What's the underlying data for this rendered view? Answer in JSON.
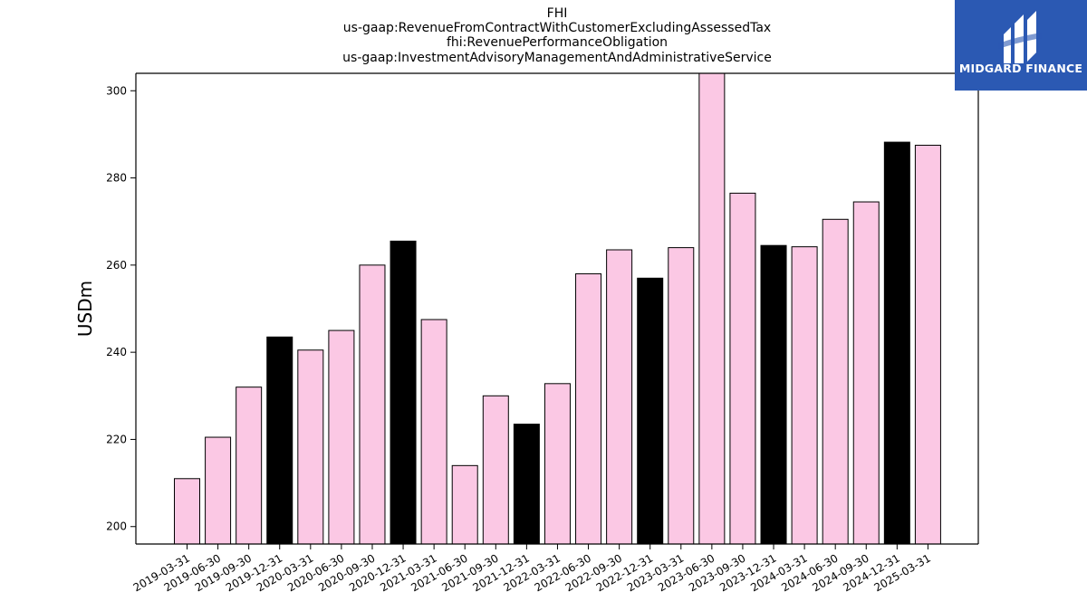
{
  "chart_data": {
    "type": "bar",
    "title_lines": [
      "FHI",
      "us-gaap:RevenueFromContractWithCustomerExcludingAssessedTax",
      "fhi:RevenuePerformanceObligation",
      "us-gaap:InvestmentAdvisoryManagementAndAdministrativeService"
    ],
    "ylabel": "USDm",
    "ylim": [
      196,
      304
    ],
    "yticks": [
      200,
      220,
      240,
      260,
      280,
      300
    ],
    "categories": [
      "2019-03-31",
      "2019-06-30",
      "2019-09-30",
      "2019-12-31",
      "2020-03-31",
      "2020-06-30",
      "2020-09-30",
      "2020-12-31",
      "2021-03-31",
      "2021-06-30",
      "2021-09-30",
      "2021-12-31",
      "2022-03-31",
      "2022-06-30",
      "2022-09-30",
      "2022-12-31",
      "2023-03-31",
      "2023-06-30",
      "2023-09-30",
      "2023-12-31",
      "2024-03-31",
      "2024-06-30",
      "2024-09-30",
      "2024-12-31",
      "2025-03-31"
    ],
    "values": [
      211.0,
      220.5,
      232.0,
      243.5,
      240.5,
      245.0,
      260.0,
      265.5,
      247.5,
      214.0,
      230.0,
      223.5,
      232.8,
      258.0,
      263.5,
      257.0,
      264.0,
      304.0,
      276.5,
      264.5,
      264.2,
      270.5,
      274.5,
      288.2,
      287.5
    ],
    "bar_colors": [
      "#fbc8e4",
      "#fbc8e4",
      "#fbc8e4",
      "#000000",
      "#fbc8e4",
      "#fbc8e4",
      "#fbc8e4",
      "#000000",
      "#fbc8e4",
      "#fbc8e4",
      "#fbc8e4",
      "#000000",
      "#fbc8e4",
      "#fbc8e4",
      "#fbc8e4",
      "#000000",
      "#fbc8e4",
      "#fbc8e4",
      "#fbc8e4",
      "#000000",
      "#fbc8e4",
      "#fbc8e4",
      "#fbc8e4",
      "#000000",
      "#fbc8e4"
    ],
    "grid": false,
    "legend": "none"
  },
  "logo": {
    "text": "MIDGARD FINANCE",
    "background": "#2b59b3"
  }
}
